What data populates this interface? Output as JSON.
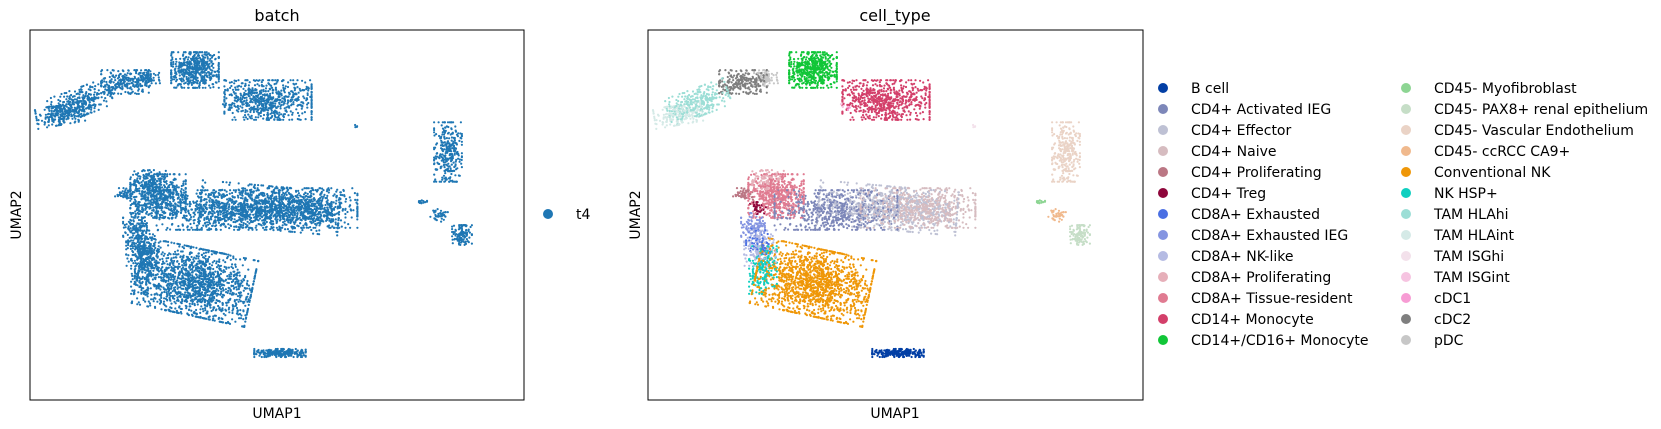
{
  "chart_data": [
    {
      "type": "scatter",
      "title": "batch",
      "xlabel": "UMAP1",
      "ylabel": "UMAP2",
      "xticks": false,
      "yticks": false,
      "legend": {
        "placement": "right",
        "columns": 1
      },
      "series": [
        {
          "name": "t4",
          "color": "#1f77b4"
        }
      ]
    },
    {
      "type": "scatter",
      "title": "cell_type",
      "xlabel": "UMAP1",
      "ylabel": "UMAP2",
      "xticks": false,
      "yticks": false,
      "legend": {
        "placement": "right",
        "columns": 2
      },
      "series": [
        {
          "name": "B cell",
          "color": "#023fa5"
        },
        {
          "name": "CD4+ Activated IEG",
          "color": "#7d87b9"
        },
        {
          "name": "CD4+ Effector",
          "color": "#bec1d4"
        },
        {
          "name": "CD4+ Naive",
          "color": "#d6bcc0"
        },
        {
          "name": "CD4+ Proliferating",
          "color": "#bb7784"
        },
        {
          "name": "CD4+ Treg",
          "color": "#8e063b"
        },
        {
          "name": "CD8A+ Exhausted",
          "color": "#4a6fe3"
        },
        {
          "name": "CD8A+ Exhausted IEG",
          "color": "#8595e1"
        },
        {
          "name": "CD8A+ NK-like",
          "color": "#b5bbe3"
        },
        {
          "name": "CD8A+ Proliferating",
          "color": "#e6afb9"
        },
        {
          "name": "CD8A+ Tissue-resident",
          "color": "#e07b91"
        },
        {
          "name": "CD14+ Monocyte",
          "color": "#d33f6a"
        },
        {
          "name": "CD14+/CD16+ Monocyte",
          "color": "#11c638"
        },
        {
          "name": "CD45- Myofibroblast",
          "color": "#8dd593"
        },
        {
          "name": "CD45- PAX8+ renal epithelium",
          "color": "#c6dec7"
        },
        {
          "name": "CD45- Vascular Endothelium",
          "color": "#ead3c6"
        },
        {
          "name": "CD45- ccRCC CA9+",
          "color": "#f0b98d"
        },
        {
          "name": "Conventional NK",
          "color": "#ef9708"
        },
        {
          "name": "NK HSP+",
          "color": "#0fcfc0"
        },
        {
          "name": "TAM HLAhi",
          "color": "#9cded6"
        },
        {
          "name": "TAM HLAint",
          "color": "#d5eae7"
        },
        {
          "name": "TAM ISGhi",
          "color": "#f3e1eb"
        },
        {
          "name": "TAM ISGint",
          "color": "#f6c4e1"
        },
        {
          "name": "cDC1",
          "color": "#f79cd4"
        },
        {
          "name": "cDC2",
          "color": "#7f7f7f"
        },
        {
          "name": "pDC",
          "color": "#c7c7c7"
        }
      ]
    }
  ]
}
